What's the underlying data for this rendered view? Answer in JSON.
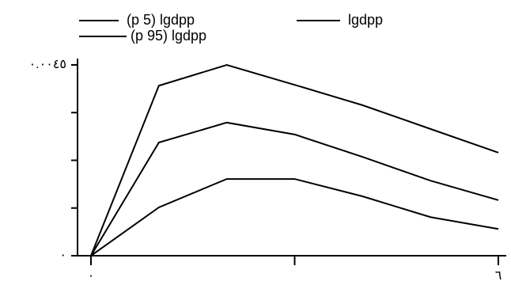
{
  "chart_data": {
    "type": "line",
    "x": [
      0,
      1,
      2,
      3,
      4,
      5,
      6
    ],
    "series": [
      {
        "name": "(p 5) lgdpp",
        "color": "#000000",
        "values": [
          0,
          0.00114,
          0.00181,
          0.00181,
          0.0014,
          0.00091,
          0.00063
        ]
      },
      {
        "name": "lgdpp",
        "color": "#000000",
        "values": [
          0,
          0.00267,
          0.00314,
          0.00286,
          0.00233,
          0.00177,
          0.00131
        ]
      },
      {
        "name": "(p 95) lgdpp",
        "color": "#000000",
        "values": [
          0,
          0.00401,
          0.0045,
          0.00403,
          0.00355,
          0.00299,
          0.00243
        ]
      }
    ],
    "xlim": [
      0,
      6
    ],
    "xticks": [
      {
        "value": 0,
        "label": "٠"
      },
      {
        "value": 3,
        "label": null
      },
      {
        "value": 6,
        "label": "٦"
      }
    ],
    "ylim": [
      0,
      0.0045
    ],
    "yticks": [
      {
        "value": 0,
        "label": "٠"
      },
      {
        "value": 0.001125,
        "label": null
      },
      {
        "value": 0.00225,
        "label": null
      },
      {
        "value": 0.003375,
        "label": null
      },
      {
        "value": 0.0045,
        "label": "٠.٠٠٤٥"
      }
    ],
    "grid": false
  }
}
